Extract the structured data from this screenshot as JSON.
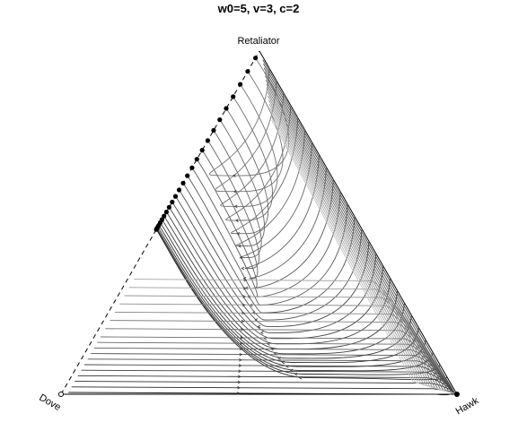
{
  "title": "w0=5, v=3, c=2",
  "vertices": {
    "top": "Retaliator",
    "left": "Dove",
    "right": "Hawk"
  },
  "chart_data": {
    "type": "ternary-phase-portrait",
    "title": "w0=5, v=3, c=2",
    "vertex_labels": [
      "Retaliator",
      "Dove",
      "Hawk"
    ],
    "parameters": {
      "w0": 5,
      "v": 3,
      "c": 2
    },
    "edges": {
      "Dove-Retaliator": "dashed",
      "Dove-Hawk": "solid",
      "Retaliator-Hawk": "solid"
    },
    "stable_point": "Hawk",
    "endpoints_on_dove_retaliator_edge": "filled circles",
    "open_point": "Dove"
  }
}
